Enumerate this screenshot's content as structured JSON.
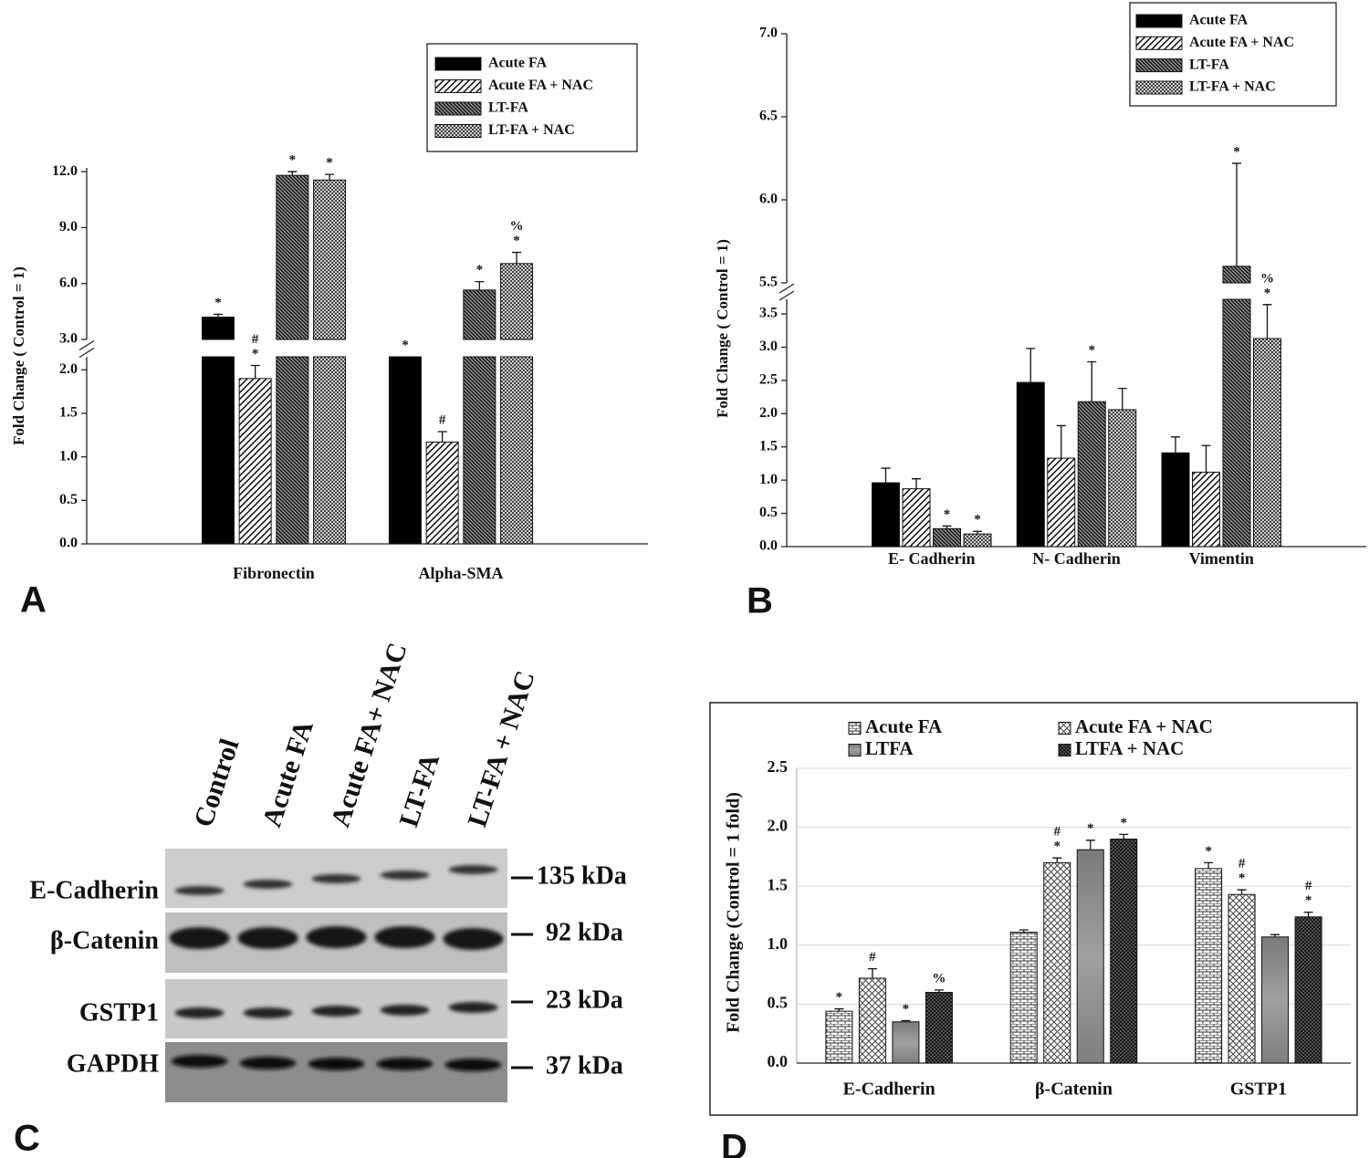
{
  "chart_data": [
    {
      "type": "bar",
      "panel_label": "A",
      "ylabel": "Fold Change ( Control = 1)",
      "categories": [
        "Fibronectin",
        "Alpha-SMA"
      ],
      "y_segments": [
        {
          "ylim": [
            0,
            2.15
          ],
          "yticks": [
            {
              "value": 0,
              "label": "0.0"
            },
            0.5,
            {
              "value": 1,
              "label": "1.0"
            },
            1.5,
            {
              "value": 2,
              "label": "2.0"
            }
          ]
        },
        {
          "ylim": [
            3,
            12.2
          ],
          "yticks": [
            {
              "value": 3,
              "label": "3.0"
            },
            {
              "value": 6,
              "label": "6.0"
            },
            {
              "value": 9,
              "label": "9.0"
            },
            {
              "value": 12,
              "label": "12.0"
            }
          ]
        }
      ],
      "series": [
        {
          "name": "Acute FA",
          "pattern": "solid-black",
          "values": [
            4.2,
            2.5
          ],
          "errors": [
            0.15,
            null
          ],
          "sig": [
            [
              "*"
            ],
            [
              "*"
            ]
          ]
        },
        {
          "name": "Acute FA + NAC",
          "pattern": "hatch",
          "values": [
            1.9,
            1.17
          ],
          "errors": [
            0.15,
            0.12
          ],
          "sig": [
            [
              "#",
              "*"
            ],
            [
              "#"
            ]
          ]
        },
        {
          "name": "LT-FA",
          "pattern": "hatch-dense",
          "values": [
            11.8,
            5.65
          ],
          "errors": [
            0.2,
            0.45
          ],
          "sig": [
            [
              "*"
            ],
            [
              "*"
            ]
          ]
        },
        {
          "name": "LT-FA + NAC",
          "pattern": "crosshatch",
          "values": [
            11.55,
            7.07
          ],
          "errors": [
            0.3,
            0.6
          ],
          "sig": [
            [
              "*"
            ],
            [
              "%",
              "*"
            ]
          ]
        }
      ]
    },
    {
      "type": "bar",
      "panel_label": "B",
      "ylabel": "Fold Change ( Control = 1)",
      "categories": [
        "E- Cadherin",
        "N- Cadherin",
        "Vimentin"
      ],
      "y_segments": [
        {
          "ylim": [
            0,
            3.72
          ],
          "yticks": [
            {
              "value": 0,
              "label": "0.0"
            },
            0.5,
            {
              "value": 1,
              "label": "1.0"
            },
            1.5,
            {
              "value": 2,
              "label": "2.0"
            },
            2.5,
            {
              "value": 3,
              "label": "3.0"
            },
            3.5
          ]
        },
        {
          "ylim": [
            5.5,
            7.0
          ],
          "yticks": [
            5.5,
            {
              "value": 6,
              "label": "6.0"
            },
            6.5,
            {
              "value": 7,
              "label": "7.0"
            }
          ]
        }
      ],
      "series": [
        {
          "name": "Acute FA",
          "pattern": "solid-black",
          "values": [
            0.96,
            2.47,
            1.41
          ],
          "errors": [
            0.22,
            0.51,
            0.24
          ],
          "sig": [
            [],
            [],
            []
          ]
        },
        {
          "name": "Acute FA + NAC",
          "pattern": "hatch",
          "values": [
            0.87,
            1.33,
            1.12
          ],
          "errors": [
            0.15,
            0.49,
            0.4
          ],
          "sig": [
            [],
            [],
            []
          ]
        },
        {
          "name": "LT-FA",
          "pattern": "hatch-dense",
          "values": [
            0.27,
            2.18,
            5.6
          ],
          "errors": [
            0.04,
            0.6,
            0.62
          ],
          "sig": [
            [
              "*"
            ],
            [
              "*"
            ],
            [
              "*"
            ]
          ]
        },
        {
          "name": "LT-FA + NAC",
          "pattern": "crosshatch",
          "values": [
            0.19,
            2.06,
            3.13
          ],
          "errors": [
            0.04,
            0.32,
            0.51
          ],
          "sig": [
            [
              "*"
            ],
            [],
            [
              "%",
              "*"
            ]
          ]
        }
      ]
    },
    {
      "type": "bar",
      "panel_label": "D",
      "ylabel": "Fold Change (Control = 1 fold)",
      "grid": true,
      "categories": [
        "E-Cadherin",
        "β-Catenin",
        "GSTP1"
      ],
      "y_segments": [
        {
          "ylim": [
            0,
            2.5
          ],
          "yticks": [
            {
              "value": 0,
              "label": "0.0"
            },
            0.5,
            {
              "value": 1,
              "label": "1.0"
            },
            1.5,
            {
              "value": 2,
              "label": "2.0"
            },
            2.5
          ]
        }
      ],
      "series": [
        {
          "name": "Acute FA",
          "pattern": "brick",
          "values": [
            0.44,
            1.11,
            1.65
          ],
          "errors": [
            0.02,
            0.02,
            0.05
          ],
          "sig": [
            [
              "*"
            ],
            [],
            [
              "*"
            ]
          ]
        },
        {
          "name": "Acute FA + NAC",
          "pattern": "lattice",
          "values": [
            0.72,
            1.7,
            1.43
          ],
          "errors": [
            0.08,
            0.04,
            0.04
          ],
          "sig": [
            [
              "#"
            ],
            [
              "#",
              "*"
            ],
            [
              "#",
              "*"
            ]
          ]
        },
        {
          "name": "LTFA",
          "pattern": "grey",
          "values": [
            0.35,
            1.81,
            1.07
          ],
          "errors": [
            0.01,
            0.08,
            0.02
          ],
          "sig": [
            [
              "*"
            ],
            [
              "*"
            ],
            []
          ]
        },
        {
          "name": "LTFA + NAC",
          "pattern": "crosshatch-dark",
          "values": [
            0.6,
            1.9,
            1.24
          ],
          "errors": [
            0.02,
            0.04,
            0.04
          ],
          "sig": [
            [
              "%"
            ],
            [
              "*"
            ],
            [
              "#",
              "*"
            ]
          ]
        }
      ]
    }
  ],
  "blot": {
    "panel_label": "C",
    "lanes": [
      "Control",
      "Acute FA",
      "Acute FA+ NAC",
      "LT-FA",
      "LT-FA + NAC"
    ],
    "rows": [
      {
        "protein": "E-Cadherin",
        "marker": "135 kDa"
      },
      {
        "protein": "β-Catenin",
        "marker": "92 kDa"
      },
      {
        "protein": "GSTP1",
        "marker": "23 kDa"
      },
      {
        "protein": "GAPDH",
        "marker": "37 kDa"
      }
    ]
  }
}
